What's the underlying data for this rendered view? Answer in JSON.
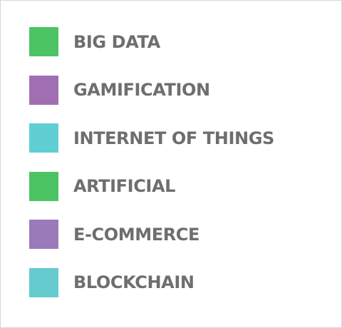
{
  "legend": {
    "items": [
      {
        "label": "BIG DATA",
        "color": "#4cc463"
      },
      {
        "label": "GAMIFICATION",
        "color": "#a06fb1"
      },
      {
        "label": "INTERNET OF THINGS",
        "color": "#5fcfd3"
      },
      {
        "label": "ARTIFICIAL",
        "color": "#4cc463"
      },
      {
        "label": "E-COMMERCE",
        "color": "#9a7ab9"
      },
      {
        "label": "BLOCKCHAIN",
        "color": "#65cbcf"
      }
    ]
  }
}
